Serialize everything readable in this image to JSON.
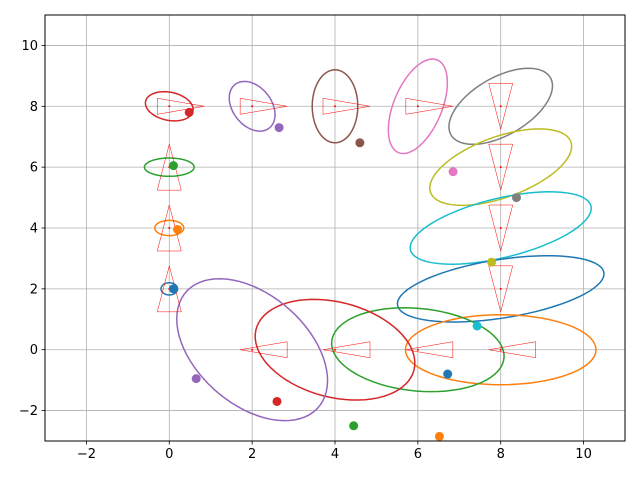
{
  "chart_data": {
    "type": "scatter",
    "title": "",
    "xlabel": "",
    "ylabel": "",
    "xlim": [
      -3,
      11
    ],
    "ylim": [
      -3,
      11
    ],
    "grid": true,
    "xticks": [
      -2,
      0,
      2,
      4,
      6,
      8,
      10
    ],
    "yticks": [
      -2,
      0,
      2,
      4,
      6,
      8,
      10
    ],
    "xtick_labels": [
      "−2",
      "0",
      "2",
      "4",
      "6",
      "8",
      "10"
    ],
    "ytick_labels": [
      "−2",
      "0",
      "2",
      "4",
      "6",
      "8",
      "10"
    ],
    "points": [
      {
        "x": 0.1,
        "y": 2.0,
        "color": "#1f77b4"
      },
      {
        "x": 0.2,
        "y": 3.95,
        "color": "#ff7f0e"
      },
      {
        "x": 0.1,
        "y": 6.05,
        "color": "#2ca02c"
      },
      {
        "x": 0.48,
        "y": 7.8,
        "color": "#d62728"
      },
      {
        "x": 2.65,
        "y": 7.3,
        "color": "#9467bd"
      },
      {
        "x": 4.6,
        "y": 6.8,
        "color": "#8c564b"
      },
      {
        "x": 6.85,
        "y": 5.85,
        "color": "#e377c2"
      },
      {
        "x": 8.38,
        "y": 5.0,
        "color": "#7f7f7f"
      },
      {
        "x": 7.78,
        "y": 2.88,
        "color": "#bcbd22"
      },
      {
        "x": 7.43,
        "y": 0.78,
        "color": "#17becf"
      },
      {
        "x": 6.72,
        "y": -0.8,
        "color": "#1f77b4"
      },
      {
        "x": 6.52,
        "y": -2.85,
        "color": "#ff7f0e"
      },
      {
        "x": 4.45,
        "y": -2.5,
        "color": "#2ca02c"
      },
      {
        "x": 2.6,
        "y": -1.7,
        "color": "#d62728"
      },
      {
        "x": 0.65,
        "y": -0.95,
        "color": "#9467bd"
      }
    ],
    "ellipses": [
      {
        "cx": 0.0,
        "cy": 2.0,
        "rx": 0.2,
        "ry": 0.2,
        "angle": 0,
        "color": "#1f77b4"
      },
      {
        "cx": 0.0,
        "cy": 4.0,
        "rx": 0.35,
        "ry": 0.25,
        "angle": 0,
        "color": "#ff7f0e"
      },
      {
        "cx": 0.0,
        "cy": 6.0,
        "rx": 0.6,
        "ry": 0.3,
        "angle": 0,
        "color": "#2ca02c"
      },
      {
        "cx": 0.0,
        "cy": 8.0,
        "rx": 0.6,
        "ry": 0.45,
        "angle": -25,
        "color": "#d62728"
      },
      {
        "cx": 2.0,
        "cy": 8.0,
        "rx": 0.85,
        "ry": 0.5,
        "angle": -70,
        "color": "#9467bd"
      },
      {
        "cx": 4.0,
        "cy": 8.0,
        "rx": 1.2,
        "ry": 0.55,
        "angle": 90,
        "color": "#8c564b"
      },
      {
        "cx": 6.0,
        "cy": 8.0,
        "rx": 1.6,
        "ry": 0.6,
        "angle": 75,
        "color": "#e377c2"
      },
      {
        "cx": 8.0,
        "cy": 8.0,
        "rx": 1.55,
        "ry": 0.85,
        "angle": 45,
        "color": "#7f7f7f"
      },
      {
        "cx": 8.0,
        "cy": 6.0,
        "rx": 1.9,
        "ry": 0.95,
        "angle": 30,
        "color": "#bcbd22"
      },
      {
        "cx": 8.0,
        "cy": 4.0,
        "rx": 2.3,
        "ry": 0.95,
        "angle": 20,
        "color": "#17becf"
      },
      {
        "cx": 8.0,
        "cy": 2.0,
        "rx": 2.55,
        "ry": 0.95,
        "angle": 13,
        "color": "#1f77b4"
      },
      {
        "cx": 8.0,
        "cy": 0.0,
        "rx": 2.3,
        "ry": 1.15,
        "angle": 0,
        "color": "#ff7f0e"
      },
      {
        "cx": 6.0,
        "cy": 0.0,
        "rx": 2.1,
        "ry": 1.35,
        "angle": -10,
        "color": "#2ca02c"
      },
      {
        "cx": 4.0,
        "cy": 0.0,
        "rx": 2.05,
        "ry": 1.5,
        "angle": -30,
        "color": "#d62728"
      },
      {
        "cx": 2.0,
        "cy": 0.0,
        "rx": 2.55,
        "ry": 1.5,
        "angle": -60,
        "color": "#9467bd"
      }
    ],
    "markers": [
      {
        "x": 0,
        "y": 2,
        "dir": "up"
      },
      {
        "x": 0,
        "y": 4,
        "dir": "up"
      },
      {
        "x": 0,
        "y": 6,
        "dir": "up"
      },
      {
        "x": 0,
        "y": 8,
        "dir": "right"
      },
      {
        "x": 2,
        "y": 8,
        "dir": "right"
      },
      {
        "x": 4,
        "y": 8,
        "dir": "right"
      },
      {
        "x": 6,
        "y": 8,
        "dir": "right"
      },
      {
        "x": 8,
        "y": 8,
        "dir": "down"
      },
      {
        "x": 8,
        "y": 6,
        "dir": "down"
      },
      {
        "x": 8,
        "y": 4,
        "dir": "down"
      },
      {
        "x": 8,
        "y": 2,
        "dir": "down"
      },
      {
        "x": 8,
        "y": 0,
        "dir": "left"
      },
      {
        "x": 6,
        "y": 0,
        "dir": "left"
      },
      {
        "x": 4,
        "y": 0,
        "dir": "left"
      },
      {
        "x": 2,
        "y": 0,
        "dir": "left"
      }
    ],
    "marker_color": "#ff0000"
  }
}
